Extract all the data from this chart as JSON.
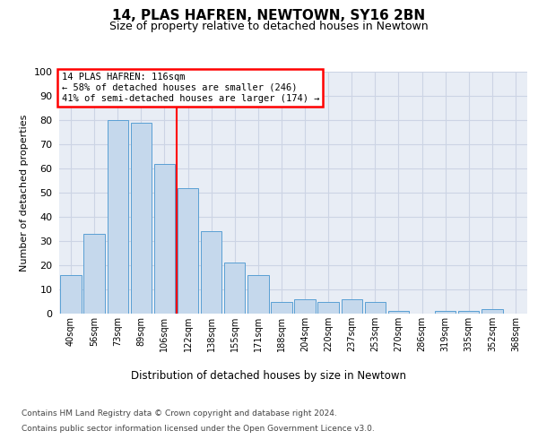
{
  "title": "14, PLAS HAFREN, NEWTOWN, SY16 2BN",
  "subtitle": "Size of property relative to detached houses in Newtown",
  "xlabel": "Distribution of detached houses by size in Newtown",
  "ylabel": "Number of detached properties",
  "bar_values": [
    16,
    33,
    80,
    79,
    62,
    52,
    34,
    21,
    16,
    5,
    6,
    5,
    6,
    5,
    1,
    0,
    1,
    1,
    2,
    0
  ],
  "bar_labels": [
    "40sqm",
    "56sqm",
    "73sqm",
    "89sqm",
    "106sqm",
    "122sqm",
    "138sqm",
    "155sqm",
    "171sqm",
    "188sqm",
    "204sqm",
    "220sqm",
    "237sqm",
    "253sqm",
    "270sqm",
    "286sqm",
    "319sqm",
    "335sqm",
    "352sqm",
    "368sqm"
  ],
  "bar_color": "#c5d8ec",
  "bar_edge_color": "#5a9fd4",
  "vline_x": 4.5,
  "annotation_text": "14 PLAS HAFREN: 116sqm\n← 58% of detached houses are smaller (246)\n41% of semi-detached houses are larger (174) →",
  "annotation_box_facecolor": "white",
  "annotation_box_edgecolor": "red",
  "vline_color": "red",
  "ylim": [
    0,
    100
  ],
  "yticks": [
    0,
    10,
    20,
    30,
    40,
    50,
    60,
    70,
    80,
    90,
    100
  ],
  "grid_color": "#ccd4e4",
  "background_color": "#e8edf5",
  "footer_line1": "Contains HM Land Registry data © Crown copyright and database right 2024.",
  "footer_line2": "Contains public sector information licensed under the Open Government Licence v3.0."
}
